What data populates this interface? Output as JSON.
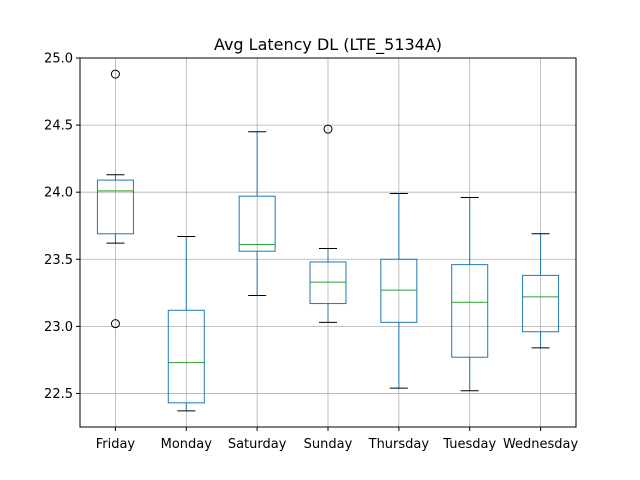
{
  "chart_data": {
    "type": "boxplot",
    "title": "Avg Latency DL (LTE_5134A)",
    "xlabel": "",
    "ylabel": "",
    "ylim": [
      22.25,
      25.0
    ],
    "yticks": [
      "22.5",
      "23.0",
      "23.5",
      "24.0",
      "24.5",
      "25.0"
    ],
    "grid": true,
    "categories": [
      "Friday",
      "Monday",
      "Saturday",
      "Sunday",
      "Thursday",
      "Tuesday",
      "Wednesday"
    ],
    "boxes": [
      {
        "whisker_low": 23.62,
        "q1": 23.69,
        "median": 24.01,
        "q3": 24.09,
        "whisker_high": 24.13,
        "outliers": [
          24.88,
          23.02
        ]
      },
      {
        "whisker_low": 22.37,
        "q1": 22.43,
        "median": 22.73,
        "q3": 23.12,
        "whisker_high": 23.67,
        "outliers": []
      },
      {
        "whisker_low": 23.23,
        "q1": 23.56,
        "median": 23.61,
        "q3": 23.97,
        "whisker_high": 24.45,
        "outliers": []
      },
      {
        "whisker_low": 23.03,
        "q1": 23.17,
        "median": 23.33,
        "q3": 23.48,
        "whisker_high": 23.58,
        "outliers": [
          24.47
        ]
      },
      {
        "whisker_low": 22.54,
        "q1": 23.03,
        "median": 23.27,
        "q3": 23.5,
        "whisker_high": 23.99,
        "outliers": []
      },
      {
        "whisker_low": 22.52,
        "q1": 22.77,
        "median": 23.18,
        "q3": 23.46,
        "whisker_high": 23.96,
        "outliers": []
      },
      {
        "whisker_low": 22.84,
        "q1": 22.96,
        "median": 23.22,
        "q3": 23.38,
        "whisker_high": 23.69,
        "outliers": []
      }
    ],
    "colors": {
      "box": "#1f77b4",
      "median": "#2ca02c",
      "whisker": "#1f77b4",
      "outlier": "#000000",
      "grid": "#b0b0b0"
    }
  }
}
